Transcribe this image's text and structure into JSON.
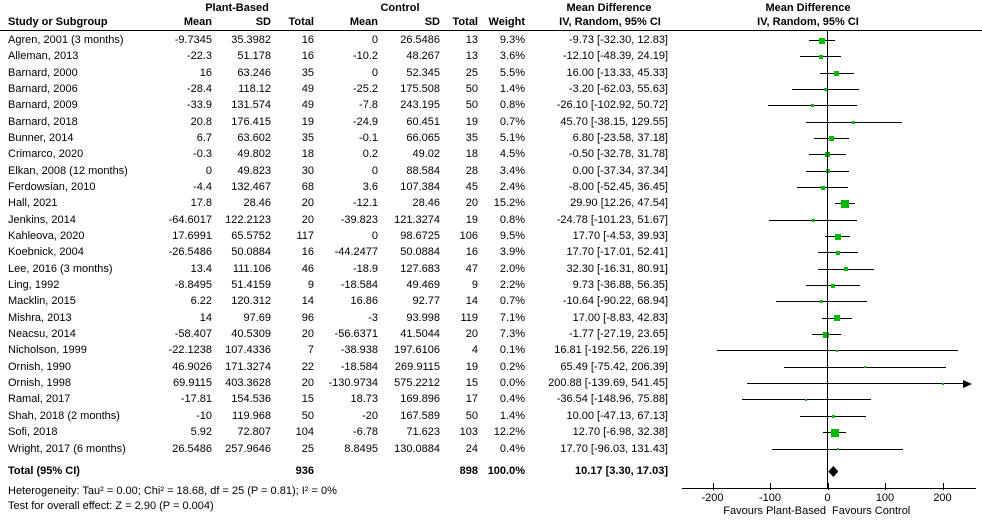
{
  "header": {
    "study_col": "Study or Subgroup",
    "group1": "Plant-Based",
    "group2": "Control",
    "mean": "Mean",
    "sd": "SD",
    "total": "Total",
    "weight": "Weight",
    "md_title": "Mean Difference",
    "md_method": "IV, Random, 95% CI"
  },
  "colors": {
    "marker_green": "#00bd00",
    "line_black": "#000000",
    "diamond_black": "#000000"
  },
  "chart_data": {
    "type": "forest",
    "effect_measure": "Mean Difference",
    "model": "IV, Random, 95% CI",
    "axis": {
      "ticks": [
        -200,
        -100,
        0,
        100,
        200
      ],
      "range": [
        -250,
        250
      ],
      "favours_left": "Favours Plant-Based",
      "favours_right": "Favours Control"
    },
    "studies": [
      {
        "name": "Agren, 2001 (3 months)",
        "pb_mean": "-9.7345",
        "pb_sd": "35.3982",
        "pb_total": "16",
        "c_mean": "0",
        "c_sd": "26.5486",
        "c_total": "13",
        "weight": "9.3%",
        "md": -9.73,
        "lo": -32.3,
        "hi": 12.83,
        "ci_text": "-9.73 [-32.30, 12.83]"
      },
      {
        "name": "Alleman, 2013",
        "pb_mean": "-22.3",
        "pb_sd": "51.178",
        "pb_total": "16",
        "c_mean": "-10.2",
        "c_sd": "48.267",
        "c_total": "13",
        "weight": "3.6%",
        "md": -12.1,
        "lo": -48.39,
        "hi": 24.19,
        "ci_text": "-12.10 [-48.39, 24.19]"
      },
      {
        "name": "Barnard, 2000",
        "pb_mean": "16",
        "pb_sd": "63.246",
        "pb_total": "35",
        "c_mean": "0",
        "c_sd": "52.345",
        "c_total": "25",
        "weight": "5.5%",
        "md": 16.0,
        "lo": -13.33,
        "hi": 45.33,
        "ci_text": "16.00 [-13.33, 45.33]"
      },
      {
        "name": "Barnard, 2006",
        "pb_mean": "-28.4",
        "pb_sd": "118.12",
        "pb_total": "49",
        "c_mean": "-25.2",
        "c_sd": "175.508",
        "c_total": "50",
        "weight": "1.4%",
        "md": -3.2,
        "lo": -62.03,
        "hi": 55.63,
        "ci_text": "-3.20 [-62.03, 55.63]"
      },
      {
        "name": "Barnard, 2009",
        "pb_mean": "-33.9",
        "pb_sd": "131.574",
        "pb_total": "49",
        "c_mean": "-7.8",
        "c_sd": "243.195",
        "c_total": "50",
        "weight": "0.8%",
        "md": -26.1,
        "lo": -102.92,
        "hi": 50.72,
        "ci_text": "-26.10 [-102.92, 50.72]"
      },
      {
        "name": "Barnard, 2018",
        "pb_mean": "20.8",
        "pb_sd": "176.415",
        "pb_total": "19",
        "c_mean": "-24.9",
        "c_sd": "60.451",
        "c_total": "19",
        "weight": "0.7%",
        "md": 45.7,
        "lo": -38.15,
        "hi": 129.55,
        "ci_text": "45.70 [-38.15, 129.55]"
      },
      {
        "name": "Bunner, 2014",
        "pb_mean": "6.7",
        "pb_sd": "63.602",
        "pb_total": "35",
        "c_mean": "-0.1",
        "c_sd": "66.065",
        "c_total": "35",
        "weight": "5.1%",
        "md": 6.8,
        "lo": -23.58,
        "hi": 37.18,
        "ci_text": "6.80 [-23.58, 37.18]"
      },
      {
        "name": "Crimarco, 2020",
        "pb_mean": "-0.3",
        "pb_sd": "49.802",
        "pb_total": "18",
        "c_mean": "0.2",
        "c_sd": "49.02",
        "c_total": "18",
        "weight": "4.5%",
        "md": -0.5,
        "lo": -32.78,
        "hi": 31.78,
        "ci_text": "-0.50 [-32.78, 31.78]"
      },
      {
        "name": "Elkan, 2008 (12 months)",
        "pb_mean": "0",
        "pb_sd": "49.823",
        "pb_total": "30",
        "c_mean": "0",
        "c_sd": "88.584",
        "c_total": "28",
        "weight": "3.4%",
        "md": 0.0,
        "lo": -37.34,
        "hi": 37.34,
        "ci_text": "0.00 [-37.34, 37.34]"
      },
      {
        "name": "Ferdowsian, 2010",
        "pb_mean": "-4.4",
        "pb_sd": "132.467",
        "pb_total": "68",
        "c_mean": "3.6",
        "c_sd": "107.384",
        "c_total": "45",
        "weight": "2.4%",
        "md": -8.0,
        "lo": -52.45,
        "hi": 36.45,
        "ci_text": "-8.00 [-52.45, 36.45]"
      },
      {
        "name": "Hall, 2021",
        "pb_mean": "17.8",
        "pb_sd": "28.46",
        "pb_total": "20",
        "c_mean": "-12.1",
        "c_sd": "28.46",
        "c_total": "20",
        "weight": "15.2%",
        "md": 29.9,
        "lo": 12.26,
        "hi": 47.54,
        "ci_text": "29.90 [12.26, 47.54]"
      },
      {
        "name": "Jenkins, 2014",
        "pb_mean": "-64.6017",
        "pb_sd": "122.2123",
        "pb_total": "20",
        "c_mean": "-39.823",
        "c_sd": "121.3274",
        "c_total": "19",
        "weight": "0.8%",
        "md": -24.78,
        "lo": -101.23,
        "hi": 51.67,
        "ci_text": "-24.78 [-101.23, 51.67]"
      },
      {
        "name": "Kahleova, 2020",
        "pb_mean": "17.6991",
        "pb_sd": "65.5752",
        "pb_total": "117",
        "c_mean": "0",
        "c_sd": "98.6725",
        "c_total": "106",
        "weight": "9.5%",
        "md": 17.7,
        "lo": -4.53,
        "hi": 39.93,
        "ci_text": "17.70 [-4.53, 39.93]"
      },
      {
        "name": "Koebnick, 2004",
        "pb_mean": "-26.5486",
        "pb_sd": "50.0884",
        "pb_total": "16",
        "c_mean": "-44.2477",
        "c_sd": "50.0884",
        "c_total": "16",
        "weight": "3.9%",
        "md": 17.7,
        "lo": -17.01,
        "hi": 52.41,
        "ci_text": "17.70 [-17.01, 52.41]"
      },
      {
        "name": "Lee, 2016 (3 months)",
        "pb_mean": "13.4",
        "pb_sd": "111.106",
        "pb_total": "46",
        "c_mean": "-18.9",
        "c_sd": "127.683",
        "c_total": "47",
        "weight": "2.0%",
        "md": 32.3,
        "lo": -16.31,
        "hi": 80.91,
        "ci_text": "32.30 [-16.31, 80.91]"
      },
      {
        "name": "Ling, 1992",
        "pb_mean": "-8.8495",
        "pb_sd": "51.4159",
        "pb_total": "9",
        "c_mean": "-18.584",
        "c_sd": "49.469",
        "c_total": "9",
        "weight": "2.2%",
        "md": 9.73,
        "lo": -36.88,
        "hi": 56.35,
        "ci_text": "9.73 [-36.88, 56.35]"
      },
      {
        "name": "Macklin, 2015",
        "pb_mean": "6.22",
        "pb_sd": "120.312",
        "pb_total": "14",
        "c_mean": "16.86",
        "c_sd": "92.77",
        "c_total": "14",
        "weight": "0.7%",
        "md": -10.64,
        "lo": -90.22,
        "hi": 68.94,
        "ci_text": "-10.64 [-90.22, 68.94]"
      },
      {
        "name": "Mishra, 2013",
        "pb_mean": "14",
        "pb_sd": "97.69",
        "pb_total": "96",
        "c_mean": "-3",
        "c_sd": "93.998",
        "c_total": "119",
        "weight": "7.1%",
        "md": 17.0,
        "lo": -8.83,
        "hi": 42.83,
        "ci_text": "17.00 [-8.83, 42.83]"
      },
      {
        "name": "Neacsu, 2014",
        "pb_mean": "-58.407",
        "pb_sd": "40.5309",
        "pb_total": "20",
        "c_mean": "-56.6371",
        "c_sd": "41.5044",
        "c_total": "20",
        "weight": "7.3%",
        "md": -1.77,
        "lo": -27.19,
        "hi": 23.65,
        "ci_text": "-1.77 [-27.19, 23.65]"
      },
      {
        "name": "Nicholson, 1999",
        "pb_mean": "-22.1238",
        "pb_sd": "107.4336",
        "pb_total": "7",
        "c_mean": "-38.938",
        "c_sd": "197.6106",
        "c_total": "4",
        "weight": "0.1%",
        "md": 16.81,
        "lo": -192.56,
        "hi": 226.19,
        "ci_text": "16.81 [-192.56, 226.19]"
      },
      {
        "name": "Ornish, 1990",
        "pb_mean": "46.9026",
        "pb_sd": "171.3274",
        "pb_total": "22",
        "c_mean": "-18.584",
        "c_sd": "269.9115",
        "c_total": "19",
        "weight": "0.2%",
        "md": 65.49,
        "lo": -75.42,
        "hi": 206.39,
        "ci_text": "65.49 [-75.42, 206.39]"
      },
      {
        "name": "Ornish, 1998",
        "pb_mean": "69.9115",
        "pb_sd": "403.3628",
        "pb_total": "20",
        "c_mean": "-130.9734",
        "c_sd": "575.2212",
        "c_total": "15",
        "weight": "0.0%",
        "md": 200.88,
        "lo": -139.69,
        "hi": 541.45,
        "ci_text": "200.88 [-139.69, 541.45]"
      },
      {
        "name": "Ramal, 2017",
        "pb_mean": "-17.81",
        "pb_sd": "154.536",
        "pb_total": "15",
        "c_mean": "18.73",
        "c_sd": "169.896",
        "c_total": "17",
        "weight": "0.4%",
        "md": -36.54,
        "lo": -148.96,
        "hi": 75.88,
        "ci_text": "-36.54 [-148.96, 75.88]"
      },
      {
        "name": "Shah, 2018 (2 months)",
        "pb_mean": "-10",
        "pb_sd": "119.968",
        "pb_total": "50",
        "c_mean": "-20",
        "c_sd": "167.589",
        "c_total": "50",
        "weight": "1.4%",
        "md": 10.0,
        "lo": -47.13,
        "hi": 67.13,
        "ci_text": "10.00 [-47.13, 67.13]"
      },
      {
        "name": "Sofi, 2018",
        "pb_mean": "5.92",
        "pb_sd": "72.807",
        "pb_total": "104",
        "c_mean": "-6.78",
        "c_sd": "71.623",
        "c_total": "103",
        "weight": "12.2%",
        "md": 12.7,
        "lo": -6.98,
        "hi": 32.38,
        "ci_text": "12.70 [-6.98, 32.38]"
      },
      {
        "name": "Wright, 2017 (6 months)",
        "pb_mean": "26.5486",
        "pb_sd": "257.9646",
        "pb_total": "25",
        "c_mean": "8.8495",
        "c_sd": "130.0884",
        "c_total": "24",
        "weight": "0.4%",
        "md": 17.7,
        "lo": -96.03,
        "hi": 131.43,
        "ci_text": "17.70 [-96.03, 131.43]"
      }
    ],
    "total": {
      "label": "Total (95% CI)",
      "pb_total": "936",
      "c_total": "898",
      "weight": "100.0%",
      "md": 10.17,
      "lo": 3.3,
      "hi": 17.03,
      "ci_text": "10.17 [3.30, 17.03]"
    },
    "heterogeneity": "Heterogeneity: Tau² = 0.00; Chi² = 18.68, df = 25 (P = 0.81); I² = 0%",
    "overall_effect": "Test for overall effect: Z = 2.90 (P = 0.004)"
  }
}
